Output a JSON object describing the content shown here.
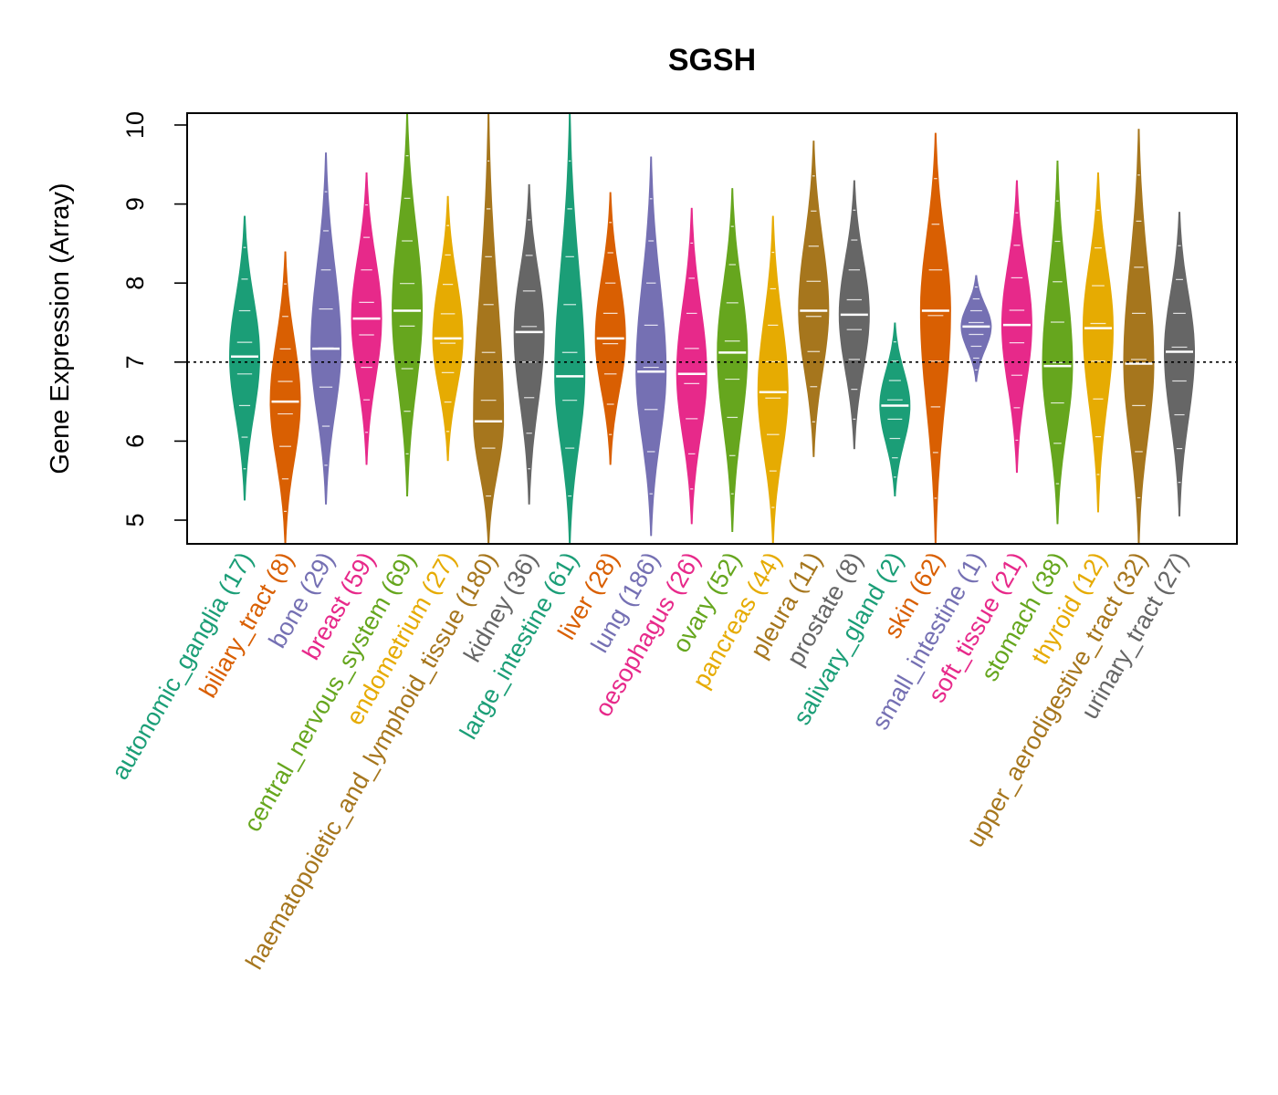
{
  "chart_data": {
    "type": "violin",
    "title": "SGSH",
    "ylabel": "Gene Expression (Array)",
    "xlabel": "",
    "ylim": [
      4.7,
      10.15
    ],
    "yticks": [
      5,
      6,
      7,
      8,
      9,
      10
    ],
    "reference_line": 7.0,
    "grid": false,
    "categories": [
      {
        "label": "autonomic_ganglia (17)",
        "color": "#1B9E77",
        "median": 7.07,
        "min": 5.25,
        "max": 8.85
      },
      {
        "label": "biliary_tract (8)",
        "color": "#D95F02",
        "median": 6.5,
        "min": 4.7,
        "max": 8.4
      },
      {
        "label": "bone (29)",
        "color": "#7570B3",
        "median": 7.17,
        "min": 5.2,
        "max": 9.65
      },
      {
        "label": "breast (59)",
        "color": "#E7298A",
        "median": 7.55,
        "min": 5.7,
        "max": 9.4
      },
      {
        "label": "central_nervous_system (69)",
        "color": "#66A61E",
        "median": 7.65,
        "min": 5.3,
        "max": 10.15
      },
      {
        "label": "endometrium (27)",
        "color": "#E6AB02",
        "median": 7.3,
        "min": 5.75,
        "max": 9.1
      },
      {
        "label": "haematopoietic_and_lymphoid_tissue (180)",
        "color": "#A6761D",
        "median": 6.25,
        "min": 4.7,
        "max": 10.15
      },
      {
        "label": "kidney (36)",
        "color": "#666666",
        "median": 7.38,
        "min": 5.2,
        "max": 9.25
      },
      {
        "label": "large_intestine (61)",
        "color": "#1B9E77",
        "median": 6.82,
        "min": 4.7,
        "max": 10.15
      },
      {
        "label": "liver (28)",
        "color": "#D95F02",
        "median": 7.3,
        "min": 5.7,
        "max": 9.15
      },
      {
        "label": "lung (186)",
        "color": "#7570B3",
        "median": 6.88,
        "min": 4.8,
        "max": 9.6
      },
      {
        "label": "oesophagus (26)",
        "color": "#E7298A",
        "median": 6.85,
        "min": 4.95,
        "max": 8.95
      },
      {
        "label": "ovary (52)",
        "color": "#66A61E",
        "median": 7.12,
        "min": 4.85,
        "max": 9.2
      },
      {
        "label": "pancreas (44)",
        "color": "#E6AB02",
        "median": 6.62,
        "min": 4.7,
        "max": 8.85
      },
      {
        "label": "pleura (11)",
        "color": "#A6761D",
        "median": 7.65,
        "min": 5.8,
        "max": 9.8
      },
      {
        "label": "prostate (8)",
        "color": "#666666",
        "median": 7.6,
        "min": 5.9,
        "max": 9.3
      },
      {
        "label": "salivary_gland (2)",
        "color": "#1B9E77",
        "median": 6.45,
        "min": 5.3,
        "max": 7.5
      },
      {
        "label": "skin (62)",
        "color": "#D95F02",
        "median": 7.65,
        "min": 4.7,
        "max": 9.9
      },
      {
        "label": "small_intestine (1)",
        "color": "#7570B3",
        "median": 7.45,
        "min": 6.75,
        "max": 8.1
      },
      {
        "label": "soft_tissue (21)",
        "color": "#E7298A",
        "median": 7.47,
        "min": 5.6,
        "max": 9.3
      },
      {
        "label": "stomach (38)",
        "color": "#66A61E",
        "median": 6.95,
        "min": 4.95,
        "max": 9.55
      },
      {
        "label": "thyroid (12)",
        "color": "#E6AB02",
        "median": 7.43,
        "min": 5.1,
        "max": 9.4
      },
      {
        "label": "upper_aerodigestive_tract (32)",
        "color": "#A6761D",
        "median": 6.98,
        "min": 4.7,
        "max": 9.95
      },
      {
        "label": "urinary_tract (27)",
        "color": "#666666",
        "median": 7.13,
        "min": 5.05,
        "max": 8.9
      }
    ]
  }
}
